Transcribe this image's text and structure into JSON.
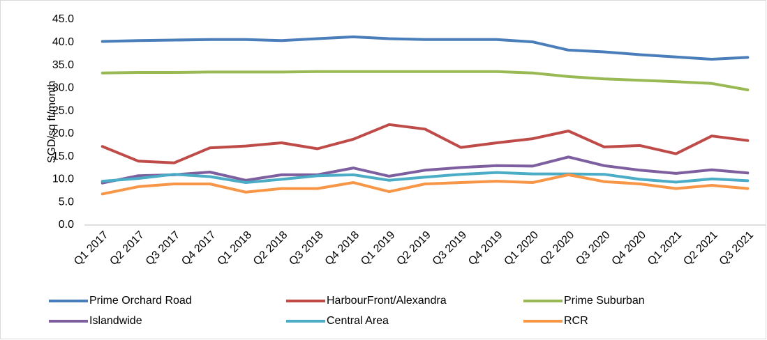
{
  "chart_data": {
    "type": "line",
    "y_label": "SGD/sq ft/month",
    "categories": [
      "Q1 2017",
      "Q2 2017",
      "Q3 2017",
      "Q4 2017",
      "Q1 2018",
      "Q2 2018",
      "Q3 2018",
      "Q4 2018",
      "Q1 2019",
      "Q2 2019",
      "Q3 2019",
      "Q4 2019",
      "Q1 2020",
      "Q2 2020",
      "Q3 2020",
      "Q4 2020",
      "Q1 2021",
      "Q2 2021",
      "Q3 2021"
    ],
    "series": [
      {
        "name": "Prime Orchard Road",
        "color": "#4a7ebb",
        "values": [
          40.2,
          40.4,
          40.5,
          40.6,
          40.6,
          40.4,
          40.8,
          41.2,
          40.8,
          40.6,
          40.6,
          40.6,
          40.1,
          38.3,
          37.9,
          37.3,
          36.8,
          36.3,
          36.7
        ]
      },
      {
        "name": "HarbourFront/Alexandra",
        "color": "#be4b48",
        "values": [
          17.2,
          14.0,
          13.6,
          16.9,
          17.3,
          18.0,
          16.7,
          18.8,
          22.0,
          21.0,
          17.0,
          18.0,
          18.9,
          20.6,
          17.1,
          17.4,
          15.6,
          19.5,
          18.5
        ]
      },
      {
        "name": "Prime Suburban",
        "color": "#98b954",
        "values": [
          33.3,
          33.4,
          33.4,
          33.5,
          33.5,
          33.5,
          33.6,
          33.6,
          33.6,
          33.6,
          33.6,
          33.6,
          33.3,
          32.5,
          32.0,
          31.7,
          31.4,
          31.0,
          29.6
        ]
      },
      {
        "name": "Islandwide",
        "color": "#7d5fa0",
        "values": [
          9.2,
          10.8,
          11.0,
          11.6,
          9.8,
          11.0,
          11.0,
          12.5,
          10.7,
          12.0,
          12.6,
          13.0,
          12.9,
          14.9,
          13.0,
          12.0,
          11.3,
          12.1,
          11.4
        ]
      },
      {
        "name": "Central Area",
        "color": "#4bacc6",
        "values": [
          9.6,
          10.2,
          11.1,
          10.6,
          9.3,
          10.0,
          10.8,
          11.0,
          9.8,
          10.5,
          11.1,
          11.5,
          11.2,
          11.2,
          11.1,
          10.0,
          9.4,
          10.1,
          9.7
        ]
      },
      {
        "name": "RCR",
        "color": "#f79646",
        "values": [
          6.8,
          8.4,
          9.0,
          9.0,
          7.2,
          8.0,
          8.0,
          9.3,
          7.3,
          9.0,
          9.3,
          9.6,
          9.3,
          11.0,
          9.5,
          9.0,
          8.0,
          8.7,
          8.0
        ]
      }
    ],
    "ylim": [
      0,
      45
    ],
    "yticks": [
      {
        "value": 0,
        "label": "0.0"
      },
      {
        "value": 5,
        "label": "5.0"
      },
      {
        "value": 10,
        "label": "10.0"
      },
      {
        "value": 15,
        "label": "15.0"
      },
      {
        "value": 20,
        "label": "20.0"
      },
      {
        "value": 25,
        "label": "25.0"
      },
      {
        "value": 30,
        "label": "30.0"
      },
      {
        "value": 35,
        "label": "35.0"
      },
      {
        "value": 40,
        "label": "40.0"
      },
      {
        "value": 45,
        "label": "45.0"
      }
    ],
    "grid": false
  }
}
